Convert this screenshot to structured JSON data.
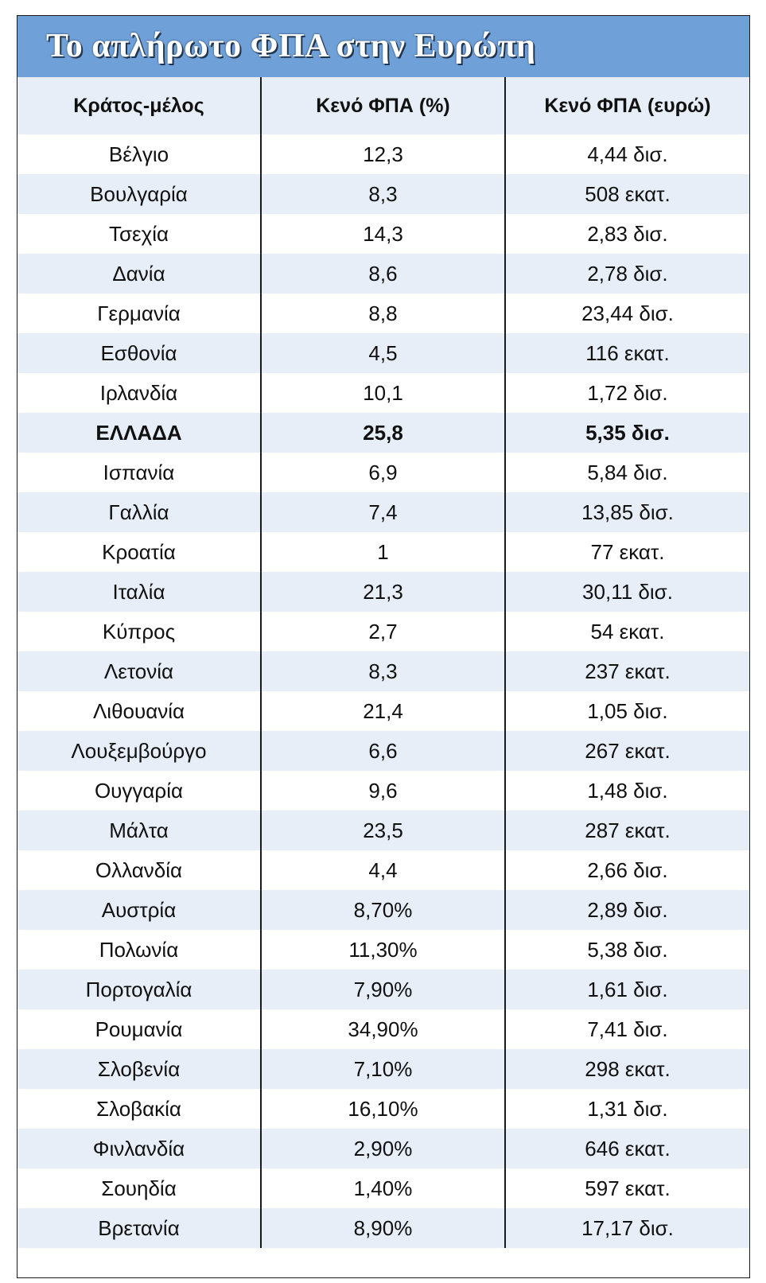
{
  "title": "Το απλήρωτο ΦΠΑ στην Ευρώπη",
  "colors": {
    "title_bar": "#6fa0d8",
    "row_stripe": "#e7eef7",
    "border": "#1a1a1a"
  },
  "chart_data": {
    "type": "table",
    "title": "Το απλήρωτο ΦΠΑ στην Ευρώπη",
    "columns": [
      "Κράτος-μέλος",
      "Κενό ΦΠΑ (%)",
      "Κενό ΦΠΑ (ευρώ)"
    ],
    "highlight_row": 7,
    "rows": [
      [
        "Βέλγιο",
        "12,3",
        "4,44 δισ."
      ],
      [
        "Βουλγαρία",
        "8,3",
        "508 εκατ."
      ],
      [
        "Τσεχία",
        "14,3",
        "2,83 δισ."
      ],
      [
        "Δανία",
        "8,6",
        "2,78 δισ."
      ],
      [
        "Γερμανία",
        "8,8",
        "23,44 δισ."
      ],
      [
        "Εσθονία",
        "4,5",
        "116 εκατ."
      ],
      [
        "Ιρλανδία",
        "10,1",
        "1,72 δισ."
      ],
      [
        "ΕΛΛΑΔΑ",
        "25,8",
        "5,35 δισ."
      ],
      [
        "Ισπανία",
        "6,9",
        "5,84 δισ."
      ],
      [
        "Γαλλία",
        "7,4",
        "13,85 δισ."
      ],
      [
        "Κροατία",
        "1",
        "77 εκατ."
      ],
      [
        "Ιταλία",
        "21,3",
        "30,11 δισ."
      ],
      [
        "Κύπρος",
        "2,7",
        "54 εκατ."
      ],
      [
        "Λετονία",
        "8,3",
        "237 εκατ."
      ],
      [
        "Λιθουανία",
        "21,4",
        "1,05 δισ."
      ],
      [
        "Λουξεμβούργο",
        "6,6",
        "267 εκατ."
      ],
      [
        "Ουγγαρία",
        "9,6",
        "1,48 δισ."
      ],
      [
        "Μάλτα",
        "23,5",
        "287 εκατ."
      ],
      [
        "Ολλανδία",
        "4,4",
        "2,66 δισ."
      ],
      [
        "Αυστρία",
        "8,70%",
        "2,89 δισ."
      ],
      [
        "Πολωνία",
        "11,30%",
        "5,38 δισ."
      ],
      [
        "Πορτογαλία",
        "7,90%",
        "1,61 δισ."
      ],
      [
        "Ρουμανία",
        "34,90%",
        "7,41 δισ."
      ],
      [
        "Σλοβενία",
        "7,10%",
        "298 εκατ."
      ],
      [
        "Σλοβακία",
        "16,10%",
        "1,31 δισ."
      ],
      [
        "Φινλανδία",
        "2,90%",
        "646 εκατ."
      ],
      [
        "Σουηδία",
        "1,40%",
        "597 εκατ."
      ],
      [
        "Βρετανία",
        "8,90%",
        "17,17 δισ."
      ]
    ]
  }
}
